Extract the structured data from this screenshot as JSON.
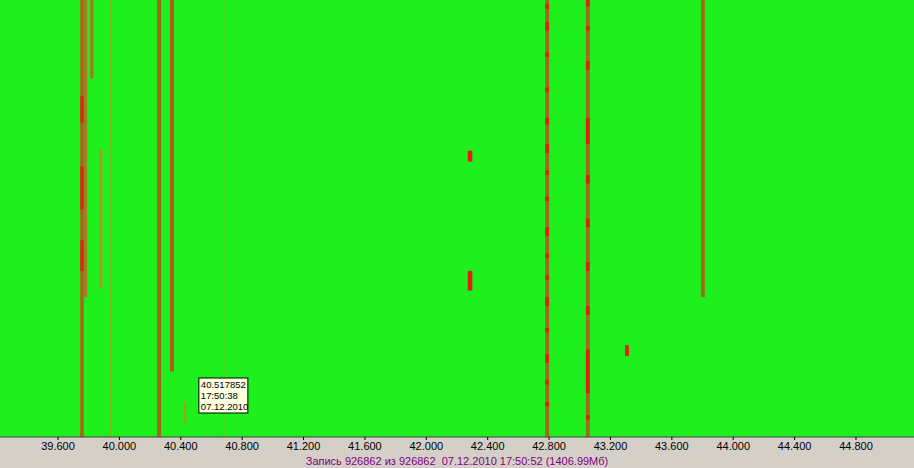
{
  "chart_data": {
    "type": "spectrogram",
    "color": "#1ef01e",
    "tick_labels": "x",
    "xlim": [
      39.222,
      45.178
    ],
    "ylim": [
      0,
      100
    ],
    "xticks": [
      {
        "value": 39.6,
        "label": "39.600"
      },
      {
        "value": 40.0,
        "label": "40.000"
      },
      {
        "value": 40.4,
        "label": "40.400"
      },
      {
        "value": 40.8,
        "label": "40.800"
      },
      {
        "value": 41.2,
        "label": "41.200"
      },
      {
        "value": 41.6,
        "label": "41.600"
      },
      {
        "value": 42.0,
        "label": "42.000"
      },
      {
        "value": 42.4,
        "label": "42.400"
      },
      {
        "value": 42.8,
        "label": "42.800"
      },
      {
        "value": 43.2,
        "label": "43.200"
      },
      {
        "value": 43.6,
        "label": "43.600"
      },
      {
        "value": 44.0,
        "label": "44.000"
      },
      {
        "value": 44.4,
        "label": "44.400"
      },
      {
        "value": 44.8,
        "label": "44.800"
      }
    ],
    "signals": [
      {
        "x": [
          39.745,
          39.768
        ],
        "color": "#b0601a",
        "segments": [
          [
            0,
            100
          ]
        ]
      },
      {
        "x": [
          39.768,
          39.79
        ],
        "color": "#a08020",
        "segments": [
          [
            0,
            68
          ]
        ]
      },
      {
        "x": [
          39.745,
          39.768
        ],
        "color": "#d03010",
        "segments": [
          [
            22,
            28
          ],
          [
            38,
            48
          ],
          [
            55,
            62
          ]
        ]
      },
      {
        "x": [
          39.81,
          39.83
        ],
        "color": "#a07a1c",
        "segments": [
          [
            0,
            18
          ]
        ]
      },
      {
        "x": [
          39.87,
          39.89
        ],
        "color": "#a0a020",
        "segments": [
          [
            34,
            66
          ]
        ]
      },
      {
        "x": [
          39.94,
          39.95
        ],
        "color": "#90b020",
        "segments": [
          [
            0,
            100
          ]
        ]
      },
      {
        "x": [
          40.245,
          40.272
        ],
        "color": "#a06a1c",
        "segments": [
          [
            0,
            100
          ]
        ]
      },
      {
        "x": [
          40.33,
          40.355
        ],
        "color": "#b05a18",
        "segments": [
          [
            0,
            85
          ]
        ]
      },
      {
        "x": [
          40.42,
          40.435
        ],
        "color": "#a0a020",
        "segments": [
          [
            92,
            97
          ]
        ]
      },
      {
        "x": [
          40.675,
          40.685
        ],
        "color": "#70c020",
        "segments": [
          [
            0,
            100
          ]
        ]
      },
      {
        "x": [
          42.27,
          42.3
        ],
        "color": "#e02010",
        "segments": [
          [
            34.5,
            37
          ],
          [
            62,
            66.5
          ]
        ]
      },
      {
        "x": [
          42.775,
          42.8
        ],
        "color": "#a06a1c",
        "segments": [
          [
            0,
            100
          ]
        ]
      },
      {
        "x": [
          42.775,
          42.8
        ],
        "color": "#e02010",
        "segments": [
          [
            1,
            2
          ],
          [
            5,
            7
          ],
          [
            12,
            13
          ],
          [
            20,
            21
          ],
          [
            27,
            28.5
          ],
          [
            33,
            35
          ],
          [
            39,
            40
          ],
          [
            45,
            46
          ],
          [
            52,
            54
          ],
          [
            58,
            59
          ],
          [
            63,
            64
          ],
          [
            68,
            70
          ],
          [
            75,
            76
          ],
          [
            81,
            83
          ],
          [
            87,
            88
          ],
          [
            92,
            93
          ]
        ]
      },
      {
        "x": [
          43.04,
          43.065
        ],
        "color": "#a06a1c",
        "segments": [
          [
            0,
            100
          ]
        ]
      },
      {
        "x": [
          43.04,
          43.065
        ],
        "color": "#e02010",
        "segments": [
          [
            0,
            1.5
          ],
          [
            6,
            7
          ],
          [
            14,
            16
          ],
          [
            27,
            33
          ],
          [
            40,
            42
          ],
          [
            50,
            52
          ],
          [
            60,
            62
          ],
          [
            70,
            72
          ],
          [
            80,
            90
          ],
          [
            95,
            96
          ]
        ]
      },
      {
        "x": [
          43.295,
          43.32
        ],
        "color": "#e02010",
        "segments": [
          [
            79,
            81.5
          ]
        ]
      },
      {
        "x": [
          43.79,
          43.815
        ],
        "color": "#a06a1c",
        "segments": [
          [
            0,
            68
          ]
        ]
      }
    ],
    "annotation": {
      "x": 40.517852,
      "y": 86.5,
      "lines": [
        "40.517852",
        "17:50:38",
        "07.12.2010"
      ]
    },
    "footer": "Запись 926862 из 926862  07.12.2010 17:50:52 (1406.99Мб)"
  }
}
